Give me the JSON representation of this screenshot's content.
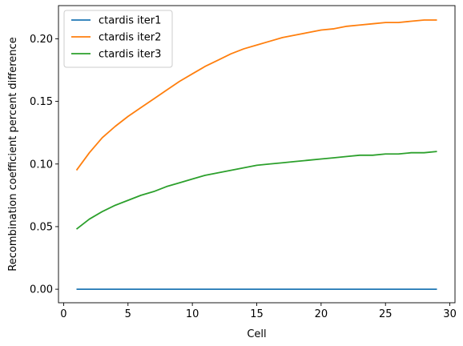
{
  "chart_data": {
    "type": "line",
    "xlabel": "Cell",
    "ylabel": "Recombination coefficient percent difference",
    "xlim": [
      -0.4,
      30.4
    ],
    "ylim": [
      -0.0108,
      0.2265
    ],
    "xticks": [
      0,
      5,
      10,
      15,
      20,
      25,
      30
    ],
    "yticks": [
      0.0,
      0.05,
      0.1,
      0.15,
      0.2
    ],
    "xtick_labels": [
      "0",
      "5",
      "10",
      "15",
      "20",
      "25",
      "30"
    ],
    "ytick_labels": [
      "0.00",
      "0.05",
      "0.10",
      "0.15",
      "0.20"
    ],
    "grid": false,
    "legend_position": "top-left",
    "x": [
      1,
      2,
      3,
      4,
      5,
      6,
      7,
      8,
      9,
      10,
      11,
      12,
      13,
      14,
      15,
      16,
      17,
      18,
      19,
      20,
      21,
      22,
      23,
      24,
      25,
      26,
      27,
      28,
      29
    ],
    "series": [
      {
        "name": "ctardis iter1",
        "color": "#1f77b4",
        "values": [
          0,
          0,
          0,
          0,
          0,
          0,
          0,
          0,
          0,
          0,
          0,
          0,
          0,
          0,
          0,
          0,
          0,
          0,
          0,
          0,
          0,
          0,
          0,
          0,
          0,
          0,
          0,
          0,
          0
        ]
      },
      {
        "name": "ctardis iter2",
        "color": "#ff7f0e",
        "values": [
          0.095,
          0.109,
          0.121,
          0.13,
          0.138,
          0.145,
          0.152,
          0.159,
          0.166,
          0.172,
          0.178,
          0.183,
          0.188,
          0.192,
          0.195,
          0.198,
          0.201,
          0.203,
          0.205,
          0.207,
          0.208,
          0.21,
          0.211,
          0.212,
          0.213,
          0.213,
          0.214,
          0.215,
          0.215
        ]
      },
      {
        "name": "ctardis iter3",
        "color": "#2ca02c",
        "values": [
          0.048,
          0.056,
          0.062,
          0.067,
          0.071,
          0.075,
          0.078,
          0.082,
          0.085,
          0.088,
          0.091,
          0.093,
          0.095,
          0.097,
          0.099,
          0.1,
          0.101,
          0.102,
          0.103,
          0.104,
          0.105,
          0.106,
          0.107,
          0.107,
          0.108,
          0.108,
          0.109,
          0.109,
          0.11
        ]
      }
    ]
  }
}
